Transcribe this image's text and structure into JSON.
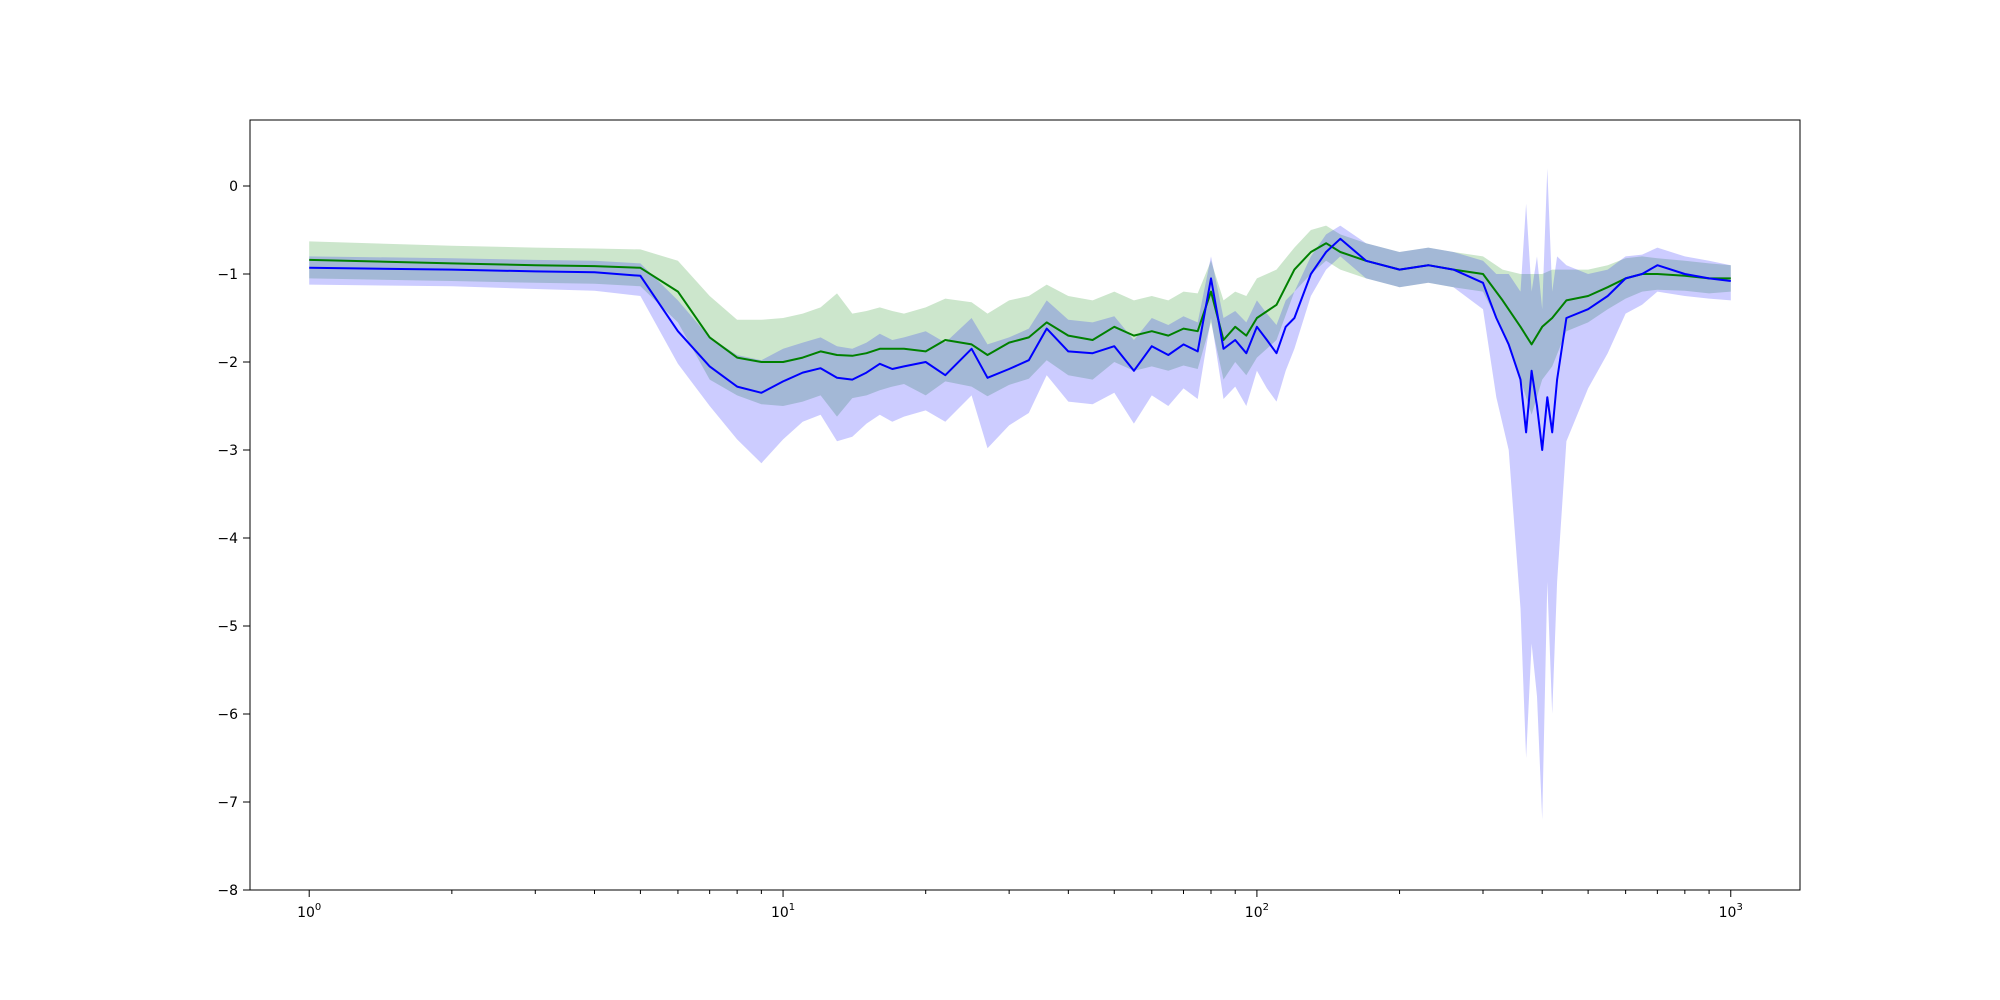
{
  "chart_data": {
    "type": "line",
    "title": "",
    "xlabel": "",
    "ylabel": "",
    "xscale": "log",
    "xlim": [
      0.75,
      1400
    ],
    "ylim": [
      -8,
      0.75
    ],
    "grid": false,
    "x_ticks": [
      {
        "value": 1,
        "base": "10",
        "exp": "0"
      },
      {
        "value": 10,
        "base": "10",
        "exp": "1"
      },
      {
        "value": 100,
        "base": "10",
        "exp": "2"
      },
      {
        "value": 1000,
        "base": "10",
        "exp": "3"
      }
    ],
    "y_ticks": [
      {
        "value": 0,
        "label": "0"
      },
      {
        "value": -1,
        "label": "−1"
      },
      {
        "value": -2,
        "label": "−2"
      },
      {
        "value": -3,
        "label": "−3"
      },
      {
        "value": -4,
        "label": "−4"
      },
      {
        "value": -5,
        "label": "−5"
      },
      {
        "value": -6,
        "label": "−6"
      },
      {
        "value": -7,
        "label": "−7"
      },
      {
        "value": -8,
        "label": "−8"
      }
    ],
    "series": [
      {
        "color": "#008000",
        "band_color": "#008000",
        "band_opacity": 0.2,
        "x": [
          1,
          2,
          3,
          4,
          5,
          6,
          7,
          8,
          9,
          10,
          11,
          12,
          13,
          14,
          15,
          16,
          17,
          18,
          20,
          22,
          25,
          27,
          30,
          33,
          36,
          40,
          45,
          50,
          55,
          60,
          65,
          70,
          75,
          80,
          85,
          90,
          95,
          100,
          110,
          120,
          130,
          140,
          150,
          170,
          200,
          230,
          260,
          300,
          330,
          360,
          380,
          400,
          420,
          450,
          500,
          550,
          600,
          650,
          700,
          800,
          900,
          1000
        ],
        "y": [
          -0.84,
          -0.88,
          -0.9,
          -0.91,
          -0.93,
          -1.2,
          -1.72,
          -1.95,
          -2.0,
          -2.0,
          -1.95,
          -1.88,
          -1.92,
          -1.93,
          -1.9,
          -1.85,
          -1.85,
          -1.85,
          -1.88,
          -1.75,
          -1.8,
          -1.92,
          -1.78,
          -1.72,
          -1.55,
          -1.7,
          -1.75,
          -1.6,
          -1.7,
          -1.65,
          -1.7,
          -1.62,
          -1.65,
          -1.2,
          -1.75,
          -1.6,
          -1.7,
          -1.5,
          -1.35,
          -0.95,
          -0.75,
          -0.65,
          -0.75,
          -0.85,
          -0.95,
          -0.9,
          -0.95,
          -1.0,
          -1.3,
          -1.6,
          -1.8,
          -1.6,
          -1.5,
          -1.3,
          -1.25,
          -1.15,
          -1.05,
          -1.0,
          -1.0,
          -1.02,
          -1.05,
          -1.05
        ],
        "upper": [
          -0.63,
          -0.68,
          -0.7,
          -0.71,
          -0.72,
          -0.85,
          -1.25,
          -1.52,
          -1.52,
          -1.5,
          -1.45,
          -1.38,
          -1.22,
          -1.45,
          -1.42,
          -1.38,
          -1.42,
          -1.45,
          -1.38,
          -1.28,
          -1.32,
          -1.45,
          -1.3,
          -1.25,
          -1.12,
          -1.25,
          -1.3,
          -1.2,
          -1.3,
          -1.25,
          -1.3,
          -1.2,
          -1.22,
          -0.85,
          -1.3,
          -1.2,
          -1.25,
          -1.05,
          -0.95,
          -0.7,
          -0.5,
          -0.45,
          -0.55,
          -0.65,
          -0.75,
          -0.7,
          -0.75,
          -0.8,
          -0.95,
          -1.0,
          -1.0,
          -1.0,
          -0.95,
          -0.95,
          -0.95,
          -0.9,
          -0.82,
          -0.8,
          -0.82,
          -0.85,
          -0.88,
          -0.9
        ],
        "lower": [
          -1.05,
          -1.08,
          -1.1,
          -1.11,
          -1.14,
          -1.55,
          -2.2,
          -2.38,
          -2.48,
          -2.5,
          -2.45,
          -2.38,
          -2.62,
          -2.41,
          -2.38,
          -2.32,
          -2.28,
          -2.25,
          -2.38,
          -2.22,
          -2.28,
          -2.39,
          -2.26,
          -2.19,
          -1.98,
          -2.15,
          -2.2,
          -2.0,
          -2.1,
          -2.05,
          -2.1,
          -2.04,
          -2.08,
          -1.55,
          -2.2,
          -2.0,
          -2.15,
          -1.95,
          -1.75,
          -1.2,
          -1.0,
          -0.85,
          -0.95,
          -1.05,
          -1.15,
          -1.1,
          -1.15,
          -1.2,
          -1.65,
          -2.2,
          -2.6,
          -2.2,
          -2.05,
          -1.65,
          -1.55,
          -1.4,
          -1.28,
          -1.2,
          -1.18,
          -1.19,
          -1.22,
          -1.2
        ]
      },
      {
        "color": "#0000ff",
        "band_color": "#0000ff",
        "band_opacity": 0.2,
        "x": [
          1,
          2,
          3,
          4,
          5,
          6,
          7,
          8,
          9,
          10,
          11,
          12,
          13,
          14,
          15,
          16,
          17,
          18,
          20,
          22,
          25,
          27,
          30,
          33,
          36,
          40,
          45,
          50,
          55,
          60,
          65,
          70,
          75,
          80,
          85,
          90,
          95,
          100,
          105,
          110,
          115,
          120,
          130,
          140,
          150,
          170,
          200,
          230,
          260,
          300,
          320,
          340,
          360,
          370,
          380,
          390,
          400,
          410,
          420,
          430,
          450,
          500,
          550,
          600,
          650,
          700,
          800,
          900,
          1000
        ],
        "y": [
          -0.93,
          -0.95,
          -0.97,
          -0.98,
          -1.02,
          -1.65,
          -2.05,
          -2.28,
          -2.35,
          -2.22,
          -2.12,
          -2.07,
          -2.18,
          -2.2,
          -2.12,
          -2.02,
          -2.08,
          -2.05,
          -2.0,
          -2.15,
          -1.85,
          -2.18,
          -2.08,
          -1.98,
          -1.62,
          -1.88,
          -1.9,
          -1.82,
          -2.1,
          -1.82,
          -1.92,
          -1.8,
          -1.88,
          -1.05,
          -1.85,
          -1.75,
          -1.9,
          -1.6,
          -1.75,
          -1.9,
          -1.6,
          -1.5,
          -1.0,
          -0.75,
          -0.6,
          -0.85,
          -0.95,
          -0.9,
          -0.95,
          -1.1,
          -1.5,
          -1.8,
          -2.2,
          -2.8,
          -2.1,
          -2.5,
          -3.0,
          -2.4,
          -2.8,
          -2.2,
          -1.5,
          -1.4,
          -1.25,
          -1.05,
          -1.0,
          -0.9,
          -1.0,
          -1.05,
          -1.08
        ],
        "upper": [
          -0.8,
          -0.82,
          -0.84,
          -0.85,
          -0.88,
          -1.3,
          -1.72,
          -1.92,
          -1.98,
          -1.85,
          -1.78,
          -1.72,
          -1.82,
          -1.85,
          -1.78,
          -1.68,
          -1.75,
          -1.72,
          -1.65,
          -1.78,
          -1.5,
          -1.8,
          -1.72,
          -1.62,
          -1.3,
          -1.52,
          -1.55,
          -1.48,
          -1.75,
          -1.5,
          -1.58,
          -1.48,
          -1.55,
          -0.8,
          -1.5,
          -1.42,
          -1.55,
          -1.3,
          -1.45,
          -1.58,
          -1.3,
          -1.2,
          -0.8,
          -0.55,
          -0.45,
          -0.65,
          -0.75,
          -0.7,
          -0.75,
          -0.85,
          -1.0,
          -1.0,
          -1.2,
          -0.2,
          -1.2,
          -0.8,
          -1.4,
          0.2,
          -1.2,
          -0.8,
          -0.9,
          -1.0,
          -0.95,
          -0.8,
          -0.78,
          -0.7,
          -0.8,
          -0.85,
          -0.9
        ],
        "lower": [
          -1.12,
          -1.14,
          -1.17,
          -1.19,
          -1.25,
          -2.02,
          -2.5,
          -2.88,
          -3.15,
          -2.88,
          -2.68,
          -2.6,
          -2.9,
          -2.85,
          -2.7,
          -2.6,
          -2.68,
          -2.62,
          -2.55,
          -2.68,
          -2.38,
          -2.98,
          -2.72,
          -2.58,
          -2.15,
          -2.45,
          -2.48,
          -2.35,
          -2.7,
          -2.38,
          -2.5,
          -2.3,
          -2.42,
          -1.5,
          -2.42,
          -2.28,
          -2.5,
          -2.1,
          -2.3,
          -2.45,
          -2.1,
          -1.85,
          -1.25,
          -0.95,
          -0.8,
          -1.05,
          -1.15,
          -1.1,
          -1.15,
          -1.4,
          -2.4,
          -3.0,
          -4.8,
          -6.5,
          -5.2,
          -5.8,
          -7.2,
          -4.5,
          -6.0,
          -4.5,
          -2.9,
          -2.3,
          -1.9,
          -1.45,
          -1.35,
          -1.2,
          -1.25,
          -1.28,
          -1.3
        ]
      }
    ]
  }
}
